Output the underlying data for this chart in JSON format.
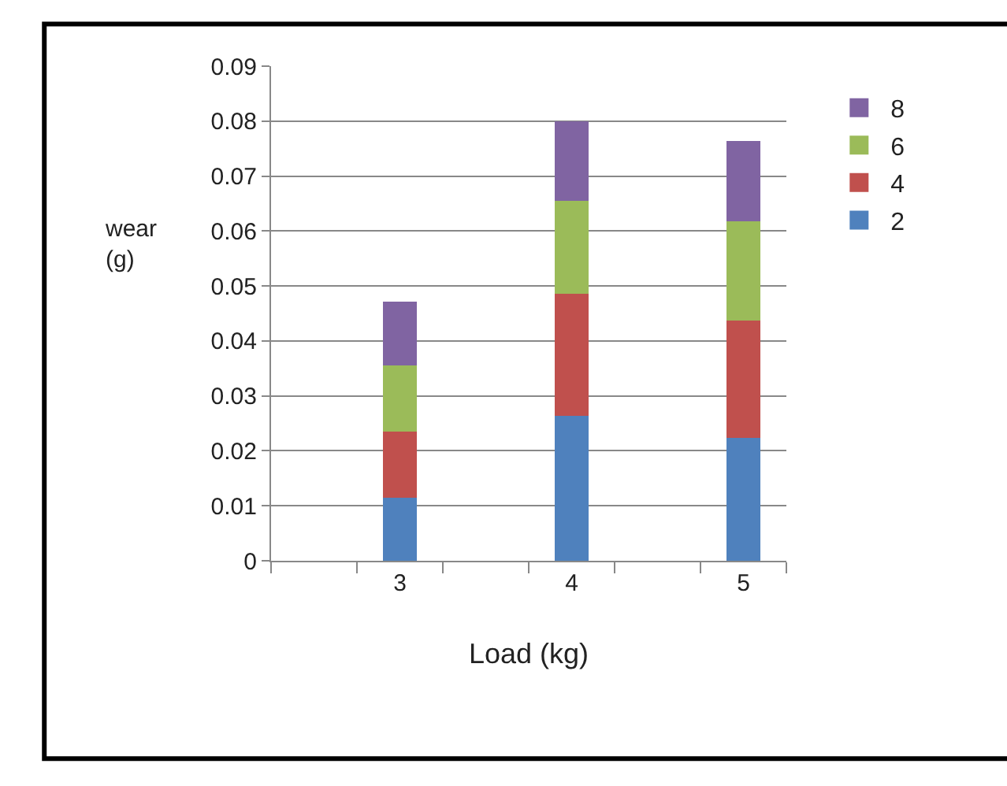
{
  "chart_data": {
    "type": "bar",
    "stacked": true,
    "xlabel": "Load (kg)",
    "ylabel": "wear (g)",
    "categories": [
      null,
      "3",
      null,
      "4",
      null,
      "5"
    ],
    "series": [
      {
        "name": "2",
        "color": "#4f81bd",
        "values": [
          null,
          0.0115,
          null,
          0.0264,
          null,
          0.0224
        ]
      },
      {
        "name": "4",
        "color": "#c0504d",
        "values": [
          null,
          0.012,
          null,
          0.0222,
          null,
          0.0213
        ]
      },
      {
        "name": "6",
        "color": "#9bbb59",
        "values": [
          null,
          0.012,
          null,
          0.0169,
          null,
          0.0181
        ]
      },
      {
        "name": "8",
        "color": "#8064a2",
        "values": [
          null,
          0.0117,
          null,
          0.0145,
          null,
          0.0146
        ]
      }
    ],
    "ylim": [
      0,
      0.09
    ],
    "yticks": [
      0,
      0.01,
      0.02,
      0.03,
      0.04,
      0.05,
      0.06,
      0.07,
      0.08,
      0.09
    ],
    "grid": "y",
    "legend": "right"
  }
}
